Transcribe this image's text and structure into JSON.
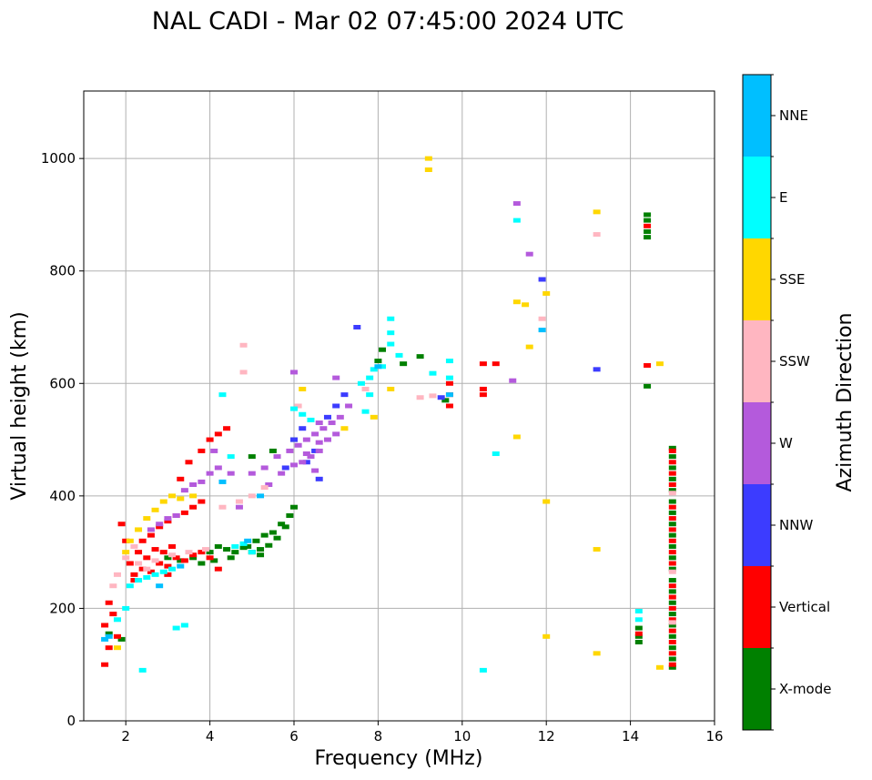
{
  "chart_data": {
    "type": "scatter",
    "title": "NAL CADI - Mar 02 07:45:00 2024 UTC",
    "xlabel": "Frequency (MHz)",
    "ylabel": "Virtual height (km)",
    "xlim": [
      1,
      16
    ],
    "ylim": [
      0,
      1120
    ],
    "xticks": [
      2,
      4,
      6,
      8,
      10,
      12,
      14,
      16
    ],
    "yticks": [
      0,
      200,
      400,
      600,
      800,
      1000
    ],
    "grid": true,
    "colorbar": {
      "label": "Azimuth Direction",
      "categories": [
        {
          "name": "X-mode",
          "color": "#008000"
        },
        {
          "name": "Vertical",
          "color": "#ff0000"
        },
        {
          "name": "NNW",
          "color": "#3c3cff"
        },
        {
          "name": "W",
          "color": "#b45adc"
        },
        {
          "name": "SSW",
          "color": "#ffb6c1"
        },
        {
          "name": "SSE",
          "color": "#ffd700"
        },
        {
          "name": "E",
          "color": "#00ffff"
        },
        {
          "name": "NNE",
          "color": "#00bfff"
        }
      ]
    },
    "series": [
      {
        "name": "X-mode",
        "points": [
          [
            3.0,
            290
          ],
          [
            3.3,
            285
          ],
          [
            3.6,
            290
          ],
          [
            4.0,
            300
          ],
          [
            4.2,
            310
          ],
          [
            4.4,
            305
          ],
          [
            4.6,
            300
          ],
          [
            4.8,
            308
          ],
          [
            5.0,
            300
          ],
          [
            5.2,
            305
          ],
          [
            5.4,
            312
          ],
          [
            5.6,
            325
          ],
          [
            5.8,
            345
          ],
          [
            5.9,
            365
          ],
          [
            6.0,
            380
          ],
          [
            5.5,
            335
          ],
          [
            5.3,
            330
          ],
          [
            5.1,
            320
          ],
          [
            4.9,
            310
          ],
          [
            5.7,
            350
          ],
          [
            5.2,
            295
          ],
          [
            4.5,
            290
          ],
          [
            3.8,
            280
          ],
          [
            4.1,
            285
          ],
          [
            5.0,
            470
          ],
          [
            5.5,
            480
          ],
          [
            6.0,
            500
          ],
          [
            9.0,
            648
          ],
          [
            8.6,
            635
          ],
          [
            9.6,
            570
          ],
          [
            8.0,
            640
          ],
          [
            8.1,
            660
          ],
          [
            14.4,
            890
          ],
          [
            14.4,
            870
          ],
          [
            14.4,
            860
          ],
          [
            14.4,
            900
          ],
          [
            14.4,
            595
          ],
          [
            14.2,
            150
          ],
          [
            14.2,
            140
          ],
          [
            14.2,
            165
          ],
          [
            15.0,
            485
          ],
          [
            15.0,
            470
          ],
          [
            15.0,
            450
          ],
          [
            15.0,
            430
          ],
          [
            15.0,
            410
          ],
          [
            15.0,
            390
          ],
          [
            15.0,
            370
          ],
          [
            15.0,
            350
          ],
          [
            15.0,
            330
          ],
          [
            15.0,
            310
          ],
          [
            15.0,
            290
          ],
          [
            15.0,
            270
          ],
          [
            15.0,
            250
          ],
          [
            15.0,
            230
          ],
          [
            15.0,
            210
          ],
          [
            15.0,
            190
          ],
          [
            15.0,
            170
          ],
          [
            15.0,
            150
          ],
          [
            15.0,
            130
          ],
          [
            15.0,
            110
          ],
          [
            15.0,
            95
          ],
          [
            1.6,
            155
          ],
          [
            1.9,
            145
          ]
        ]
      },
      {
        "name": "Vertical",
        "points": [
          [
            2.2,
            260
          ],
          [
            2.4,
            270
          ],
          [
            2.6,
            265
          ],
          [
            2.8,
            280
          ],
          [
            3.0,
            275
          ],
          [
            3.2,
            290
          ],
          [
            3.4,
            285
          ],
          [
            3.6,
            295
          ],
          [
            3.8,
            300
          ],
          [
            4.0,
            290
          ],
          [
            2.3,
            300
          ],
          [
            2.5,
            290
          ],
          [
            2.7,
            305
          ],
          [
            2.9,
            300
          ],
          [
            3.1,
            310
          ],
          [
            2.1,
            280
          ],
          [
            2.4,
            320
          ],
          [
            2.6,
            330
          ],
          [
            2.8,
            345
          ],
          [
            3.0,
            355
          ],
          [
            3.2,
            365
          ],
          [
            3.4,
            370
          ],
          [
            3.6,
            380
          ],
          [
            3.8,
            390
          ],
          [
            3.3,
            430
          ],
          [
            3.5,
            460
          ],
          [
            3.8,
            480
          ],
          [
            4.0,
            500
          ],
          [
            4.2,
            510
          ],
          [
            4.4,
            520
          ],
          [
            2.0,
            320
          ],
          [
            1.9,
            350
          ],
          [
            1.6,
            210
          ],
          [
            1.7,
            190
          ],
          [
            1.5,
            170
          ],
          [
            1.8,
            150
          ],
          [
            1.5,
            100
          ],
          [
            1.6,
            130
          ],
          [
            9.7,
            600
          ],
          [
            9.7,
            580
          ],
          [
            9.7,
            560
          ],
          [
            10.5,
            635
          ],
          [
            10.5,
            590
          ],
          [
            10.5,
            580
          ],
          [
            10.8,
            635
          ],
          [
            14.4,
            632
          ],
          [
            14.4,
            880
          ],
          [
            15.0,
            480
          ],
          [
            15.0,
            460
          ],
          [
            15.0,
            440
          ],
          [
            15.0,
            420
          ],
          [
            15.0,
            380
          ],
          [
            15.0,
            360
          ],
          [
            15.0,
            340
          ],
          [
            15.0,
            320
          ],
          [
            15.0,
            300
          ],
          [
            15.0,
            280
          ],
          [
            15.0,
            240
          ],
          [
            15.0,
            220
          ],
          [
            15.0,
            200
          ],
          [
            15.0,
            180
          ],
          [
            15.0,
            160
          ],
          [
            15.0,
            140
          ],
          [
            15.0,
            120
          ],
          [
            15.0,
            100
          ],
          [
            14.2,
            155
          ],
          [
            2.2,
            250
          ],
          [
            3.0,
            260
          ],
          [
            4.2,
            270
          ]
        ]
      },
      {
        "name": "NNW",
        "points": [
          [
            6.0,
            500
          ],
          [
            6.2,
            520
          ],
          [
            6.5,
            480
          ],
          [
            6.8,
            540
          ],
          [
            7.0,
            560
          ],
          [
            6.3,
            460
          ],
          [
            5.8,
            450
          ],
          [
            7.5,
            700
          ],
          [
            13.2,
            625
          ],
          [
            11.9,
            785
          ],
          [
            9.5,
            575
          ],
          [
            6.6,
            430
          ],
          [
            7.2,
            580
          ]
        ]
      },
      {
        "name": "W",
        "points": [
          [
            5.0,
            440
          ],
          [
            5.3,
            450
          ],
          [
            5.6,
            470
          ],
          [
            5.9,
            480
          ],
          [
            6.1,
            490
          ],
          [
            6.3,
            500
          ],
          [
            6.5,
            510
          ],
          [
            6.7,
            520
          ],
          [
            6.9,
            530
          ],
          [
            7.1,
            540
          ],
          [
            6.2,
            460
          ],
          [
            6.4,
            470
          ],
          [
            6.6,
            480
          ],
          [
            6.8,
            500
          ],
          [
            7.0,
            510
          ],
          [
            5.4,
            420
          ],
          [
            5.7,
            440
          ],
          [
            6.0,
            455
          ],
          [
            6.3,
            475
          ],
          [
            6.6,
            495
          ],
          [
            3.4,
            410
          ],
          [
            3.6,
            420
          ],
          [
            3.8,
            425
          ],
          [
            4.0,
            440
          ],
          [
            4.2,
            450
          ],
          [
            2.8,
            350
          ],
          [
            3.0,
            360
          ],
          [
            3.2,
            365
          ],
          [
            2.6,
            340
          ],
          [
            6.0,
            620
          ],
          [
            7.0,
            610
          ],
          [
            6.5,
            445
          ],
          [
            7.3,
            560
          ],
          [
            4.5,
            440
          ],
          [
            4.1,
            480
          ],
          [
            4.7,
            380
          ],
          [
            6.6,
            530
          ],
          [
            11.3,
            920
          ],
          [
            11.6,
            830
          ],
          [
            11.2,
            605
          ]
        ]
      },
      {
        "name": "SSW",
        "points": [
          [
            2.3,
            280
          ],
          [
            2.5,
            270
          ],
          [
            2.7,
            285
          ],
          [
            3.1,
            295
          ],
          [
            3.5,
            300
          ],
          [
            3.9,
            305
          ],
          [
            4.3,
            380
          ],
          [
            4.7,
            390
          ],
          [
            5.0,
            400
          ],
          [
            5.3,
            415
          ],
          [
            2.2,
            310
          ],
          [
            2.0,
            290
          ],
          [
            1.8,
            260
          ],
          [
            1.7,
            240
          ],
          [
            9.0,
            575
          ],
          [
            9.3,
            578
          ],
          [
            13.2,
            865
          ],
          [
            11.9,
            715
          ],
          [
            15.0,
            405
          ],
          [
            15.0,
            265
          ],
          [
            15.0,
            175
          ],
          [
            4.8,
            668
          ],
          [
            4.8,
            620
          ],
          [
            6.1,
            560
          ],
          [
            7.7,
            590
          ]
        ]
      },
      {
        "name": "SSE",
        "points": [
          [
            2.5,
            360
          ],
          [
            2.7,
            375
          ],
          [
            2.9,
            390
          ],
          [
            3.1,
            400
          ],
          [
            3.3,
            395
          ],
          [
            2.3,
            340
          ],
          [
            2.1,
            320
          ],
          [
            2.0,
            300
          ],
          [
            6.2,
            590
          ],
          [
            7.9,
            540
          ],
          [
            8.3,
            590
          ],
          [
            9.2,
            1000
          ],
          [
            9.2,
            980
          ],
          [
            11.3,
            745
          ],
          [
            11.5,
            740
          ],
          [
            12.0,
            760
          ],
          [
            13.2,
            905
          ],
          [
            11.6,
            665
          ],
          [
            12.0,
            390
          ],
          [
            13.2,
            305
          ],
          [
            11.3,
            505
          ],
          [
            12.0,
            150
          ],
          [
            13.2,
            120
          ],
          [
            14.7,
            635
          ],
          [
            14.7,
            95
          ],
          [
            7.2,
            520
          ],
          [
            1.8,
            130
          ],
          [
            3.6,
            400
          ]
        ]
      },
      {
        "name": "E",
        "points": [
          [
            2.3,
            250
          ],
          [
            2.5,
            255
          ],
          [
            2.7,
            260
          ],
          [
            2.9,
            265
          ],
          [
            3.1,
            270
          ],
          [
            4.6,
            310
          ],
          [
            4.8,
            315
          ],
          [
            5.0,
            300
          ],
          [
            7.8,
            610
          ],
          [
            7.9,
            625
          ],
          [
            8.1,
            630
          ],
          [
            8.3,
            715
          ],
          [
            8.3,
            690
          ],
          [
            8.3,
            670
          ],
          [
            8.5,
            650
          ],
          [
            7.6,
            600
          ],
          [
            7.7,
            550
          ],
          [
            7.8,
            580
          ],
          [
            6.0,
            555
          ],
          [
            6.2,
            545
          ],
          [
            6.4,
            535
          ],
          [
            9.3,
            618
          ],
          [
            9.7,
            640
          ],
          [
            9.7,
            610
          ],
          [
            10.8,
            475
          ],
          [
            11.3,
            890
          ],
          [
            14.2,
            195
          ],
          [
            14.2,
            180
          ],
          [
            2.1,
            240
          ],
          [
            2.4,
            90
          ],
          [
            3.2,
            165
          ],
          [
            3.4,
            170
          ],
          [
            1.8,
            180
          ],
          [
            2.0,
            200
          ],
          [
            10.5,
            90
          ],
          [
            4.3,
            580
          ],
          [
            4.5,
            470
          ]
        ]
      },
      {
        "name": "NNE",
        "points": [
          [
            11.9,
            695
          ],
          [
            9.7,
            580
          ],
          [
            8.0,
            630
          ],
          [
            4.9,
            320
          ],
          [
            5.2,
            400
          ],
          [
            2.8,
            240
          ],
          [
            3.3,
            275
          ],
          [
            1.6,
            150
          ],
          [
            1.5,
            145
          ],
          [
            4.3,
            425
          ]
        ]
      }
    ]
  }
}
